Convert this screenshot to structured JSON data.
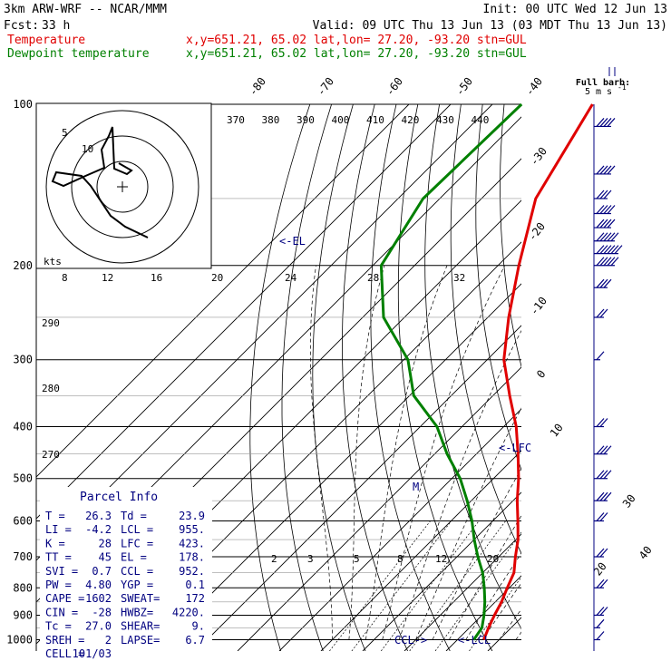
{
  "header": {
    "model": "3km ARW-WRF -- NCAR/MMM",
    "init": "Init: 00 UTC Wed 12 Jun 13",
    "fcst_label": "Fcst:",
    "fcst_value": "33 h",
    "valid": "Valid: 09 UTC Thu 13 Jun 13 (03 MDT Thu 13 Jun 13)"
  },
  "legend": [
    {
      "label": "Temperature",
      "info": "x,y=651.21, 65.02   lat,lon= 27.20, -93.20   stn=GUL",
      "color": "#e00000"
    },
    {
      "label": "Dewpoint temperature",
      "info": "x,y=651.21, 65.02   lat,lon= 27.20, -93.20   stn=GUL",
      "color": "#008000"
    }
  ],
  "full_barb": {
    "line1": "Full barb:",
    "line2": "5 m s",
    "sup": "-1"
  },
  "hodograph": {
    "units": "kts",
    "ring_labels": [
      "5",
      "10"
    ]
  },
  "annotations": {
    "el": "<-EL",
    "lfc": "<-LFC",
    "lcl": "<-LCL",
    "ccl": "CCL->",
    "m": "M"
  },
  "parcel_info": {
    "title": "Parcel Info",
    "rows": [
      [
        "T  =",
        "26.3",
        "Td =",
        "23.9"
      ],
      [
        "LI =",
        "-4.2",
        "LCL =",
        "955."
      ],
      [
        "K  =",
        "28",
        "LFC =",
        "423."
      ],
      [
        "TT =",
        "45",
        "EL  =",
        "178."
      ],
      [
        "SVI =",
        "0.7",
        "CCL =",
        "952."
      ],
      [
        "PW  =",
        "4.80",
        "YGP =",
        "0.1"
      ],
      [
        "CAPE =",
        "1602",
        "SWEAT=",
        "172"
      ],
      [
        "CIN  =",
        "-28",
        "HWBZ=",
        "4220."
      ],
      [
        "Tc =",
        "27.0",
        "SHEAR=",
        "9."
      ],
      [
        "SREH =",
        "2",
        "LAPSE=",
        "6.7"
      ],
      [
        "CELL =",
        "101/03",
        "",
        ""
      ]
    ]
  },
  "chart_data": {
    "type": "line",
    "title": "",
    "pressure_ticks": [
      "100",
      "200",
      "300",
      "400",
      "500",
      "600",
      "700",
      "800",
      "900",
      "1000"
    ],
    "pressure_levels": [
      100,
      200,
      300,
      400,
      500,
      600,
      700,
      800,
      900,
      1000
    ],
    "isotherm_labels": [
      "-80",
      "-70",
      "-60",
      "-50",
      "-40",
      "-30",
      "-20",
      "-10",
      "0",
      "10",
      "20",
      "30",
      "40"
    ],
    "theta_labels": [
      "370",
      "380",
      "390",
      "400",
      "410",
      "420",
      "430",
      "440"
    ],
    "theta_left_labels": [
      "290",
      "280",
      "270"
    ],
    "mixing_labels_top": [
      "8",
      "12",
      "16",
      "20",
      "24",
      "28",
      "32"
    ],
    "mixing_labels_bottom": [
      "2",
      "3",
      "5",
      "8",
      "12",
      "20"
    ],
    "series": [
      {
        "name": "Temperature",
        "color": "#e00000",
        "points": [
          [
            100,
            -76
          ],
          [
            150,
            -67
          ],
          [
            200,
            -55
          ],
          [
            250,
            -45
          ],
          [
            300,
            -36
          ],
          [
            350,
            -26
          ],
          [
            400,
            -17
          ],
          [
            450,
            -10
          ],
          [
            500,
            -4
          ],
          [
            550,
            1
          ],
          [
            600,
            6
          ],
          [
            650,
            10.5
          ],
          [
            700,
            14
          ],
          [
            750,
            17.5
          ],
          [
            800,
            19.5
          ],
          [
            850,
            21.5
          ],
          [
            900,
            23
          ],
          [
            950,
            24.6
          ],
          [
            1000,
            26.3
          ]
        ]
      },
      {
        "name": "Dewpoint temperature",
        "color": "#008000",
        "points": [
          [
            100,
            -93
          ],
          [
            150,
            -94
          ],
          [
            200,
            -88
          ],
          [
            250,
            -75
          ],
          [
            300,
            -59
          ],
          [
            350,
            -49
          ],
          [
            400,
            -36
          ],
          [
            450,
            -27
          ],
          [
            500,
            -18
          ],
          [
            550,
            -11
          ],
          [
            600,
            -5
          ],
          [
            650,
            0
          ],
          [
            700,
            5
          ],
          [
            750,
            10
          ],
          [
            800,
            14
          ],
          [
            850,
            17.5
          ],
          [
            900,
            20.5
          ],
          [
            950,
            23
          ],
          [
            1000,
            23.9
          ]
        ]
      }
    ],
    "wind_barbs": [
      {
        "p": 110,
        "spd": 20
      },
      {
        "p": 135,
        "spd": 20
      },
      {
        "p": 150,
        "spd": 15
      },
      {
        "p": 160,
        "spd": 20
      },
      {
        "p": 170,
        "spd": 20
      },
      {
        "p": 180,
        "spd": 25
      },
      {
        "p": 190,
        "spd": 30
      },
      {
        "p": 200,
        "spd": 25
      },
      {
        "p": 220,
        "spd": 15
      },
      {
        "p": 250,
        "spd": 10
      },
      {
        "p": 300,
        "spd": 5
      },
      {
        "p": 400,
        "spd": 10
      },
      {
        "p": 450,
        "spd": 15
      },
      {
        "p": 500,
        "spd": 15
      },
      {
        "p": 550,
        "spd": 15
      },
      {
        "p": 600,
        "spd": 10
      },
      {
        "p": 700,
        "spd": 10
      },
      {
        "p": 800,
        "spd": 10
      },
      {
        "p": 900,
        "spd": 10
      },
      {
        "p": 950,
        "spd": 5
      },
      {
        "p": 1000,
        "spd": 5
      }
    ]
  }
}
